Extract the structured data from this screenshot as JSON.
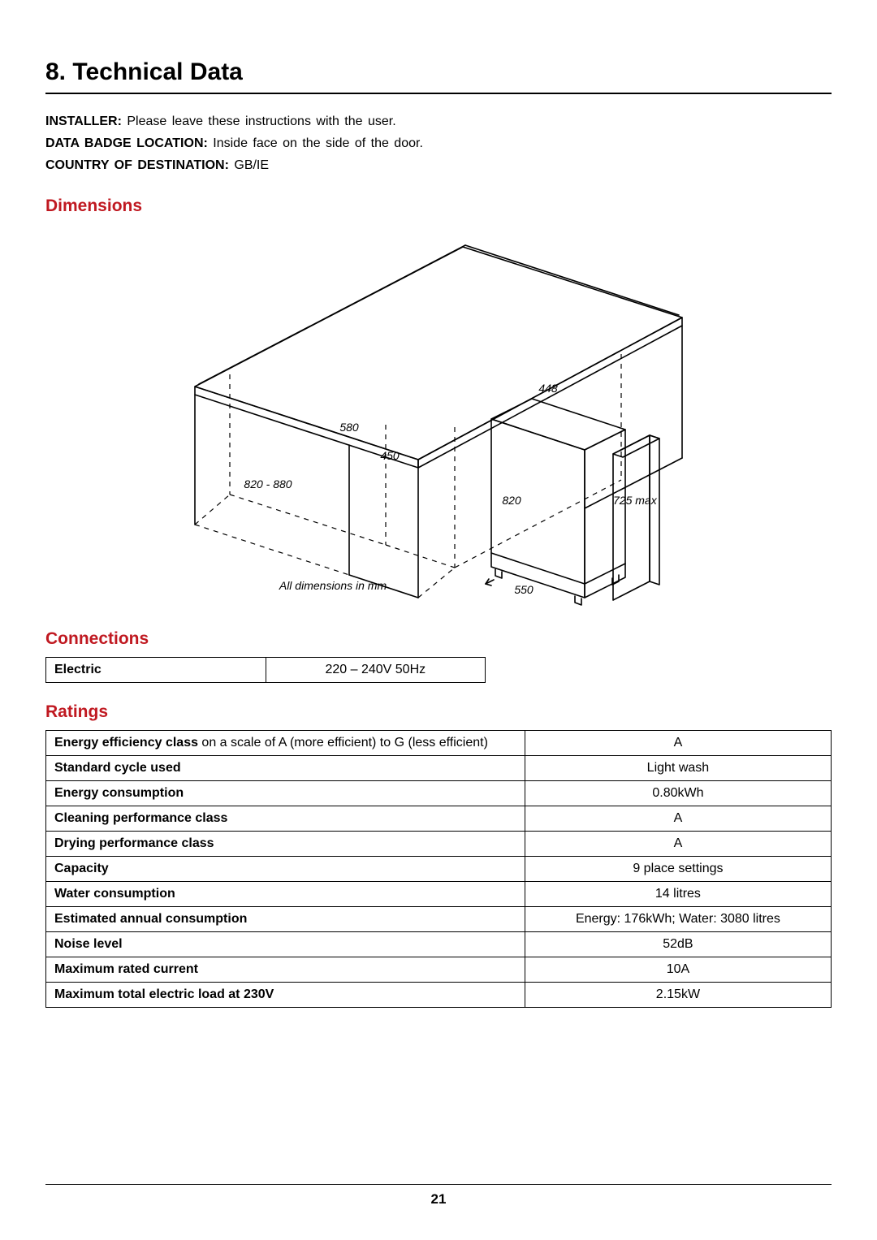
{
  "title": "8.  Technical Data",
  "intro": {
    "installer_label": "INSTALLER:",
    "installer_text": " Please leave these instructions with the user.",
    "badge_label": "DATA BADGE LOCATION:",
    "badge_text": "  Inside face on the side of the door.",
    "country_label": "COUNTRY OF DESTINATION:",
    "country_text": "  GB/IE"
  },
  "dimensions": {
    "heading": "Dimensions",
    "caption": "All dimensions in mm",
    "labels": {
      "d580": "580",
      "d450": "450",
      "d820_880": "820 - 880",
      "d448": "448",
      "d820": "820",
      "d725": "725 max",
      "d550": "550"
    }
  },
  "connections": {
    "heading": "Connections",
    "rows": [
      {
        "label": "Electric",
        "value": "220 – 240V 50Hz"
      }
    ]
  },
  "ratings": {
    "heading": "Ratings",
    "rows": [
      {
        "label_bold": "Energy efficiency class",
        "label_rest": " on a scale of A (more efficient) to G (less efficient)",
        "value": "A"
      },
      {
        "label_bold": "Standard cycle used",
        "label_rest": "",
        "value": "Light wash"
      },
      {
        "label_bold": "Energy consumption",
        "label_rest": "",
        "value": "0.80kWh"
      },
      {
        "label_bold": "Cleaning performance class",
        "label_rest": "",
        "value": "A"
      },
      {
        "label_bold": "Drying performance class",
        "label_rest": "",
        "value": "A"
      },
      {
        "label_bold": "Capacity",
        "label_rest": "",
        "value": "9 place settings"
      },
      {
        "label_bold": "Water consumption",
        "label_rest": "",
        "value": "14 litres"
      },
      {
        "label_bold": "Estimated annual consumption",
        "label_rest": "",
        "value": "Energy: 176kWh; Water: 3080 litres"
      },
      {
        "label_bold": "Noise level",
        "label_rest": "",
        "value": "52dB"
      },
      {
        "label_bold": "Maximum rated current",
        "label_rest": "",
        "value": "10A"
      },
      {
        "label_bold": "Maximum total electric load at 230V",
        "label_rest": "",
        "value": "2.15kW"
      }
    ]
  },
  "page_number": "21",
  "colors": {
    "accent": "#c01921",
    "text": "#000000",
    "border": "#000000",
    "background": "#ffffff"
  }
}
